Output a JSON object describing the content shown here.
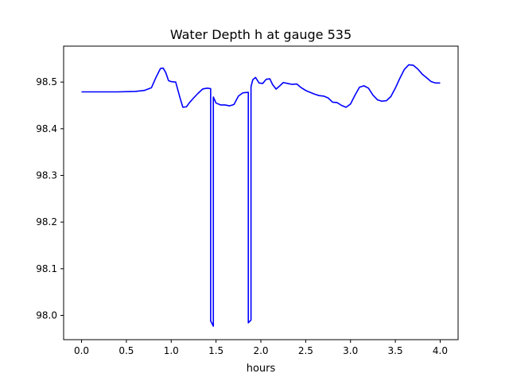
{
  "chart_data": {
    "type": "line",
    "title": "Water Depth h at gauge 535",
    "xlabel": "hours",
    "ylabel": "",
    "xlim": [
      -0.2,
      4.2
    ],
    "ylim": [
      97.948,
      98.577
    ],
    "xticks": [
      0.0,
      0.5,
      1.0,
      1.5,
      2.0,
      2.5,
      3.0,
      3.5,
      4.0
    ],
    "xtick_labels": [
      "0.0",
      "0.5",
      "1.0",
      "1.5",
      "2.0",
      "2.5",
      "3.0",
      "3.5",
      "4.0"
    ],
    "yticks": [
      98.0,
      98.1,
      98.2,
      98.3,
      98.4,
      98.5
    ],
    "ytick_labels": [
      "98.0",
      "98.1",
      "98.2",
      "98.3",
      "98.4",
      "98.5"
    ],
    "grid": false,
    "legend": false,
    "series": [
      {
        "color": "#0000ff",
        "x": [
          0.0,
          0.2,
          0.4,
          0.6,
          0.7,
          0.78,
          0.83,
          0.88,
          0.91,
          0.94,
          0.97,
          1.0,
          1.05,
          1.1,
          1.13,
          1.17,
          1.2,
          1.25,
          1.3,
          1.35,
          1.4,
          1.44,
          1.44,
          1.47,
          1.47,
          1.5,
          1.55,
          1.6,
          1.65,
          1.7,
          1.75,
          1.8,
          1.86,
          1.86,
          1.89,
          1.89,
          1.91,
          1.94,
          1.98,
          2.02,
          2.06,
          2.1,
          2.13,
          2.17,
          2.2,
          2.25,
          2.3,
          2.35,
          2.4,
          2.45,
          2.5,
          2.55,
          2.6,
          2.65,
          2.7,
          2.75,
          2.8,
          2.85,
          2.9,
          2.95,
          3.0,
          3.05,
          3.1,
          3.15,
          3.2,
          3.25,
          3.3,
          3.35,
          3.4,
          3.45,
          3.5,
          3.55,
          3.6,
          3.65,
          3.7,
          3.75,
          3.8,
          3.85,
          3.9,
          3.95,
          4.0
        ],
        "y": [
          98.479,
          98.479,
          98.479,
          98.48,
          98.482,
          98.488,
          98.51,
          98.529,
          98.53,
          98.52,
          98.503,
          98.501,
          98.5,
          98.465,
          98.446,
          98.447,
          98.455,
          98.466,
          98.476,
          98.485,
          98.487,
          98.486,
          97.988,
          97.977,
          98.468,
          98.455,
          98.451,
          98.451,
          98.449,
          98.452,
          98.47,
          98.477,
          98.478,
          97.984,
          97.99,
          98.49,
          98.505,
          98.51,
          98.498,
          98.497,
          98.506,
          98.507,
          98.495,
          98.485,
          98.49,
          98.499,
          98.497,
          98.495,
          98.496,
          98.488,
          98.482,
          98.478,
          98.474,
          98.471,
          98.47,
          98.466,
          98.457,
          98.456,
          98.45,
          98.446,
          98.453,
          98.472,
          98.489,
          98.492,
          98.487,
          98.472,
          98.462,
          98.459,
          98.46,
          98.469,
          98.487,
          98.508,
          98.527,
          98.537,
          98.536,
          98.528,
          98.517,
          98.509,
          98.501,
          98.498,
          98.498
        ]
      }
    ]
  }
}
